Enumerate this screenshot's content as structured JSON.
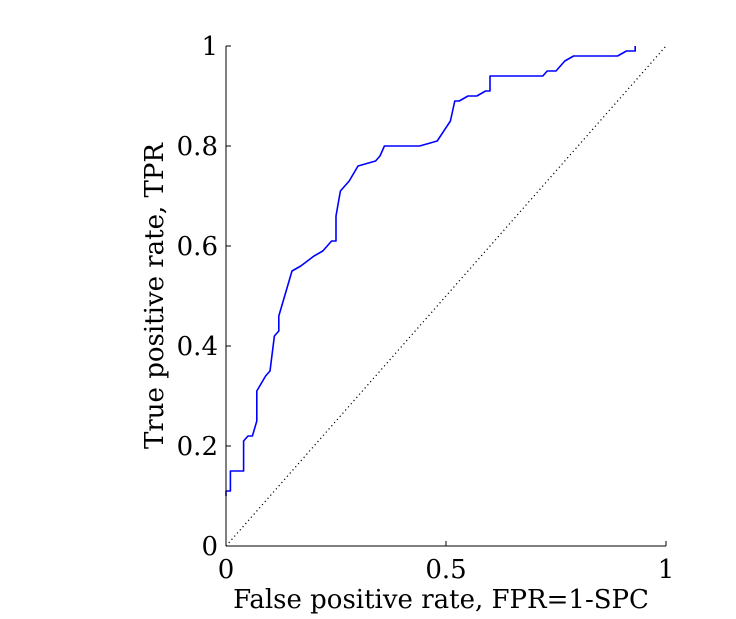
{
  "chart_data": {
    "type": "line",
    "title": "",
    "xlabel": "False positive rate, FPR=1-SPC",
    "ylabel": "True positive rate, TPR",
    "xlim": [
      0,
      1
    ],
    "ylim": [
      0,
      1
    ],
    "grid": false,
    "x_ticks": [
      {
        "value": 0,
        "label": "0"
      },
      {
        "value": 0.5,
        "label": "0.5"
      },
      {
        "value": 1,
        "label": "1"
      }
    ],
    "y_ticks": [
      {
        "value": 0,
        "label": "0"
      },
      {
        "value": 0.2,
        "label": "0.2"
      },
      {
        "value": 0.4,
        "label": "0.4"
      },
      {
        "value": 0.6,
        "label": "0.6"
      },
      {
        "value": 0.8,
        "label": "0.8"
      },
      {
        "value": 1,
        "label": "1"
      }
    ],
    "series": [
      {
        "color": "#0000ff",
        "style": "solid",
        "x": [
          0,
          0,
          0.01,
          0.01,
          0.04,
          0.04,
          0.05,
          0.06,
          0.07,
          0.07,
          0.09,
          0.1,
          0.11,
          0.12,
          0.12,
          0.15,
          0.17,
          0.2,
          0.22,
          0.24,
          0.25,
          0.25,
          0.26,
          0.28,
          0.3,
          0.34,
          0.35,
          0.36,
          0.42,
          0.44,
          0.48,
          0.51,
          0.52,
          0.53,
          0.55,
          0.57,
          0.59,
          0.6,
          0.6,
          0.63,
          0.65,
          0.72,
          0.73,
          0.75,
          0.77,
          0.79,
          0.82,
          0.89,
          0.91,
          0.92,
          0.93,
          0.93
        ],
        "y": [
          0.1,
          0.11,
          0.11,
          0.15,
          0.15,
          0.21,
          0.22,
          0.22,
          0.25,
          0.31,
          0.34,
          0.35,
          0.42,
          0.43,
          0.46,
          0.55,
          0.56,
          0.58,
          0.59,
          0.61,
          0.61,
          0.66,
          0.71,
          0.73,
          0.76,
          0.77,
          0.78,
          0.8,
          0.8,
          0.8,
          0.81,
          0.85,
          0.89,
          0.89,
          0.9,
          0.9,
          0.91,
          0.91,
          0.94,
          0.94,
          0.94,
          0.94,
          0.95,
          0.95,
          0.97,
          0.98,
          0.98,
          0.98,
          0.99,
          0.99,
          0.99,
          1.0
        ]
      },
      {
        "color": "#000000",
        "style": "dotted",
        "x": [
          0,
          1
        ],
        "y": [
          0,
          1
        ]
      }
    ]
  }
}
